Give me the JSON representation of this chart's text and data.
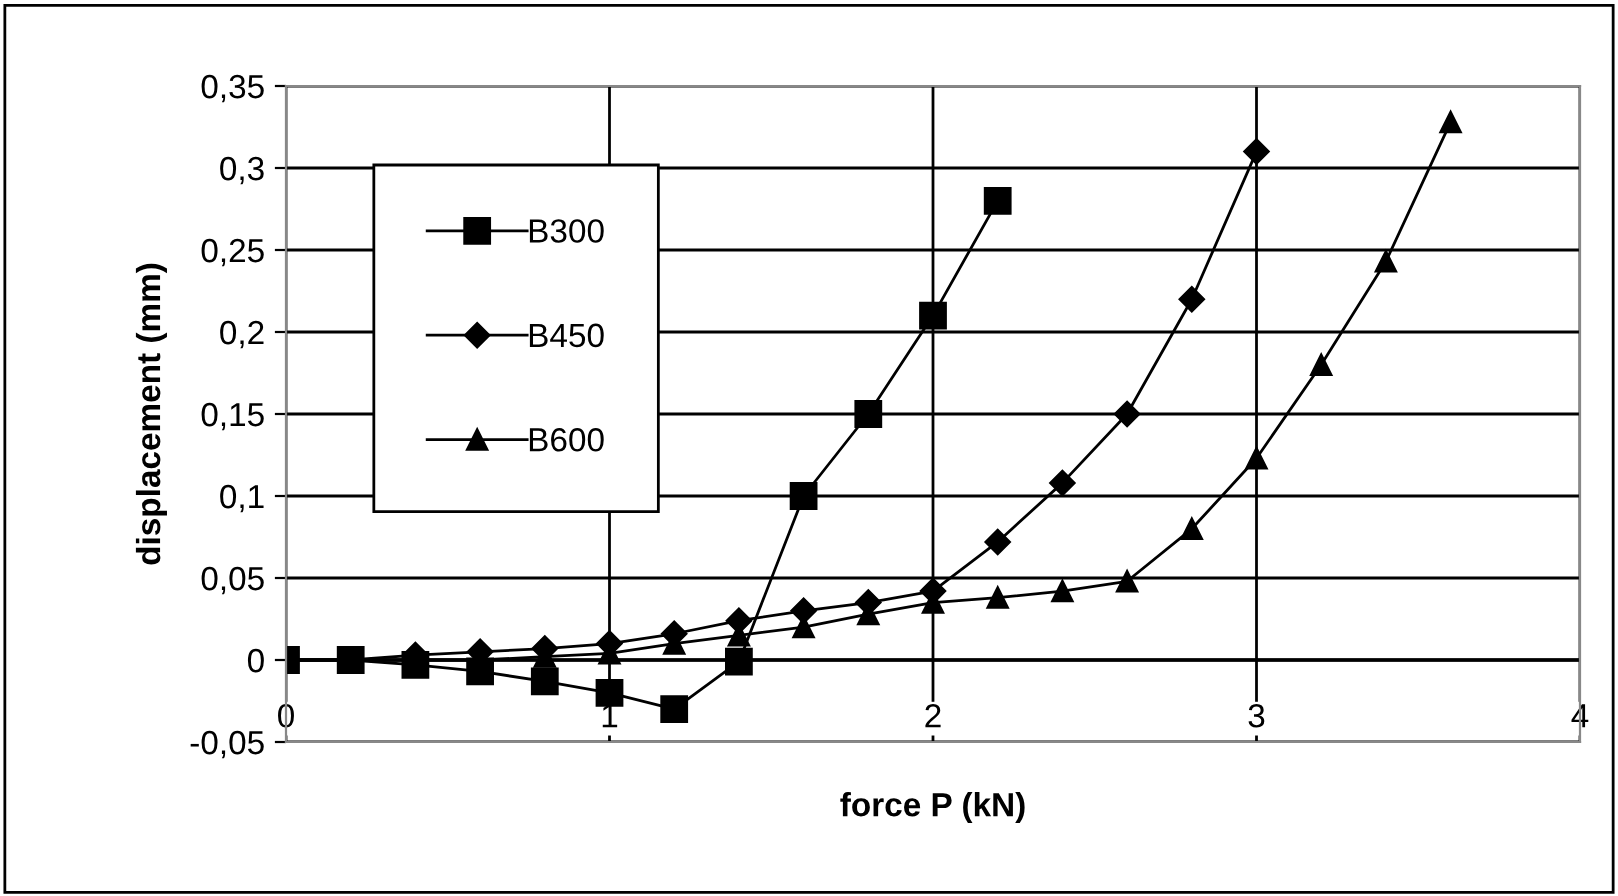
{
  "chart_data": {
    "type": "line",
    "xlabel": "force P (kN)",
    "ylabel": "displacement (mm)",
    "xlim": [
      0,
      4
    ],
    "xticks": [
      0,
      1,
      2,
      3,
      4
    ],
    "ylim": [
      -0.05,
      0.35
    ],
    "yticks": [
      {
        "value": -0.05,
        "label": "-0,05"
      },
      {
        "value": 0,
        "label": "0"
      },
      {
        "value": 0.05,
        "label": "0,05"
      },
      {
        "value": 0.1,
        "label": "0,1"
      },
      {
        "value": 0.15,
        "label": "0,15"
      },
      {
        "value": 0.2,
        "label": "0,2"
      },
      {
        "value": 0.25,
        "label": "0,25"
      },
      {
        "value": 0.3,
        "label": "0,3"
      },
      {
        "value": 0.35,
        "label": "0,35"
      }
    ],
    "grid": true,
    "legend": "top left",
    "series": [
      {
        "name": "B300",
        "color": "#000000",
        "marker": "square",
        "x": [
          0,
          0.2,
          0.4,
          0.6,
          0.8,
          1.0,
          1.2,
          1.4,
          1.6,
          1.8,
          2.0,
          2.2
        ],
        "values": [
          0,
          0,
          -0.003,
          -0.007,
          -0.013,
          -0.02,
          -0.03,
          -0.001,
          0.1,
          0.15,
          0.21,
          0.28
        ]
      },
      {
        "name": "B450",
        "color": "#000000",
        "marker": "diamond",
        "x": [
          0,
          0.2,
          0.4,
          0.6,
          0.8,
          1.0,
          1.2,
          1.4,
          1.6,
          1.8,
          2.0,
          2.2,
          2.4,
          2.6,
          2.8,
          3.0
        ],
        "values": [
          0,
          0,
          0.003,
          0.005,
          0.007,
          0.01,
          0.016,
          0.024,
          0.03,
          0.035,
          0.042,
          0.072,
          0.108,
          0.15,
          0.22,
          0.31
        ]
      },
      {
        "name": "B600",
        "color": "#000000",
        "marker": "triangle",
        "x": [
          0,
          0.2,
          0.4,
          0.6,
          0.8,
          1.0,
          1.2,
          1.4,
          1.6,
          1.8,
          2.0,
          2.2,
          2.4,
          2.6,
          2.8,
          3.0,
          3.2,
          3.4,
          3.6
        ],
        "values": [
          0,
          0,
          0,
          0,
          0.002,
          0.004,
          0.01,
          0.015,
          0.02,
          0.028,
          0.035,
          0.038,
          0.042,
          0.048,
          0.08,
          0.123,
          0.18,
          0.243,
          0.328
        ]
      }
    ]
  }
}
